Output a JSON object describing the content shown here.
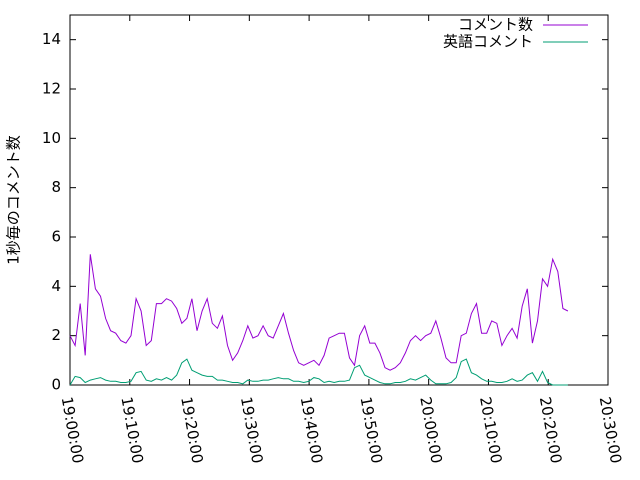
{
  "chart_data": {
    "type": "line",
    "ylabel": "1秒毎のコメント数",
    "x": [
      "19:00:00",
      "19:00:51",
      "19:01:42",
      "19:02:33",
      "19:03:24",
      "19:04:15",
      "19:05:06",
      "19:05:57",
      "19:06:48",
      "19:07:39",
      "19:08:30",
      "19:09:21",
      "19:10:12",
      "19:11:03",
      "19:11:54",
      "19:12:45",
      "19:13:36",
      "19:14:27",
      "19:15:18",
      "19:16:09",
      "19:17:00",
      "19:17:51",
      "19:18:42",
      "19:19:33",
      "19:20:24",
      "19:21:15",
      "19:22:06",
      "19:22:57",
      "19:23:48",
      "19:24:39",
      "19:25:30",
      "19:26:21",
      "19:27:12",
      "19:28:03",
      "19:28:54",
      "19:29:45",
      "19:30:36",
      "19:31:27",
      "19:32:18",
      "19:33:09",
      "19:34:00",
      "19:34:51",
      "19:35:42",
      "19:36:33",
      "19:37:24",
      "19:38:15",
      "19:39:06",
      "19:39:57",
      "19:40:48",
      "19:41:39",
      "19:42:30",
      "19:43:21",
      "19:44:12",
      "19:45:03",
      "19:45:54",
      "19:46:45",
      "19:47:36",
      "19:48:27",
      "19:49:18",
      "19:50:09",
      "19:51:00",
      "19:51:51",
      "19:52:42",
      "19:53:33",
      "19:54:24",
      "19:55:15",
      "19:56:06",
      "19:56:57",
      "19:57:48",
      "19:58:39",
      "19:59:30",
      "20:00:21",
      "20:01:12",
      "20:02:03",
      "20:02:54",
      "20:03:45",
      "20:04:36",
      "20:05:27",
      "20:06:18",
      "20:07:09",
      "20:08:00",
      "20:08:51",
      "20:09:42",
      "20:10:33",
      "20:11:24",
      "20:12:15",
      "20:13:06",
      "20:13:57",
      "20:14:48",
      "20:15:39",
      "20:16:30",
      "20:17:21",
      "20:18:12",
      "20:19:03",
      "20:19:54",
      "20:20:45",
      "20:21:36",
      "20:22:27",
      "20:23:18"
    ],
    "series": [
      {
        "name": "コメント数",
        "color": "#9400d3",
        "values": [
          2.0,
          1.6,
          3.3,
          1.2,
          5.3,
          3.9,
          3.6,
          2.7,
          2.2,
          2.1,
          1.8,
          1.7,
          2.0,
          3.5,
          3.0,
          1.6,
          1.8,
          3.3,
          3.3,
          3.5,
          3.4,
          3.1,
          2.5,
          2.7,
          3.5,
          2.2,
          3.0,
          3.5,
          2.5,
          2.3,
          2.8,
          1.6,
          1.0,
          1.3,
          1.8,
          2.4,
          1.9,
          2.0,
          2.4,
          2.0,
          1.9,
          2.4,
          2.9,
          2.1,
          1.4,
          0.9,
          0.8,
          0.9,
          1.0,
          0.8,
          1.2,
          1.9,
          2.0,
          2.1,
          2.1,
          1.1,
          0.8,
          2.0,
          2.4,
          1.7,
          1.7,
          1.3,
          0.7,
          0.6,
          0.7,
          0.9,
          1.3,
          1.8,
          2.0,
          1.8,
          2.0,
          2.1,
          2.6,
          1.9,
          1.1,
          0.9,
          0.9,
          2.0,
          2.1,
          2.9,
          3.3,
          2.1,
          2.1,
          2.6,
          2.5,
          1.6,
          2.0,
          2.3,
          1.9,
          3.2,
          3.9,
          1.7,
          2.6,
          4.3,
          4.0,
          5.1,
          4.6,
          3.1,
          3.0
        ]
      },
      {
        "name": "英語コメント",
        "color": "#009e73",
        "values": [
          0.0,
          0.35,
          0.3,
          0.1,
          0.2,
          0.25,
          0.3,
          0.2,
          0.15,
          0.15,
          0.1,
          0.1,
          0.15,
          0.5,
          0.55,
          0.2,
          0.15,
          0.25,
          0.2,
          0.3,
          0.2,
          0.4,
          0.9,
          1.05,
          0.6,
          0.5,
          0.4,
          0.35,
          0.35,
          0.2,
          0.2,
          0.15,
          0.1,
          0.1,
          0.05,
          0.2,
          0.15,
          0.15,
          0.2,
          0.2,
          0.25,
          0.3,
          0.25,
          0.25,
          0.15,
          0.15,
          0.1,
          0.15,
          0.3,
          0.25,
          0.1,
          0.15,
          0.1,
          0.15,
          0.15,
          0.2,
          0.7,
          0.8,
          0.4,
          0.3,
          0.2,
          0.1,
          0.05,
          0.05,
          0.1,
          0.1,
          0.15,
          0.25,
          0.2,
          0.3,
          0.4,
          0.2,
          0.05,
          0.05,
          0.05,
          0.1,
          0.3,
          0.95,
          1.05,
          0.5,
          0.4,
          0.25,
          0.15,
          0.15,
          0.1,
          0.1,
          0.15,
          0.25,
          0.15,
          0.2,
          0.4,
          0.5,
          0.15,
          0.55,
          0.1,
          0.0,
          0.0,
          0.0,
          0.0
        ]
      }
    ],
    "xlim": [
      "19:00:00",
      "20:30:00"
    ],
    "xticks": [
      "19:00:00",
      "19:10:00",
      "19:20:00",
      "19:30:00",
      "19:40:00",
      "19:50:00",
      "20:00:00",
      "20:10:00",
      "20:20:00",
      "20:30:00"
    ],
    "ylim": [
      0,
      15
    ],
    "yticks": [
      0,
      2,
      4,
      6,
      8,
      10,
      12,
      14
    ],
    "legend": "top-right"
  }
}
